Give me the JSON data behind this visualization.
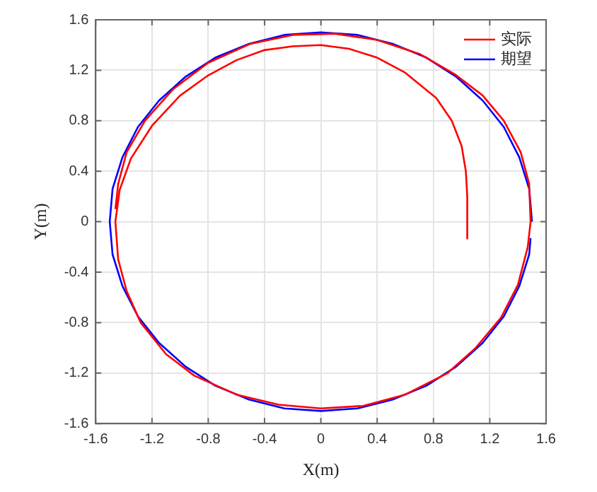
{
  "chart_data": {
    "type": "line",
    "xlabel": "X(m)",
    "ylabel": "Y(m)",
    "xlim": [
      -1.6,
      1.6
    ],
    "ylim": [
      -1.6,
      1.6
    ],
    "xticks": [
      -1.6,
      -1.2,
      -0.8,
      -0.4,
      0,
      0.4,
      0.8,
      1.2,
      1.6
    ],
    "yticks": [
      -1.6,
      -1.2,
      -0.8,
      -0.4,
      0,
      0.4,
      0.8,
      1.2,
      1.6
    ],
    "grid": true,
    "legend": "top right",
    "marker": "none",
    "line_style": "solid",
    "series": [
      {
        "name": "实际",
        "color": "#ff0000",
        "x": [
          1.04,
          1.04,
          1.03,
          1.0,
          0.93,
          0.82,
          0.6,
          0.4,
          0.2,
          0,
          -0.2,
          -0.4,
          -0.6,
          -0.8,
          -1.0,
          -1.2,
          -1.35,
          -1.43,
          -1.46,
          -1.44,
          -1.38,
          -1.28,
          -1.1,
          -0.9,
          -0.6,
          -0.3,
          0,
          0.3,
          0.6,
          0.9,
          1.1,
          1.28,
          1.4,
          1.47,
          1.49,
          1.48,
          1.42,
          1.3,
          1.15,
          0.95,
          0.7,
          0.4,
          0.1,
          -0.2,
          -0.5,
          -0.8,
          -1.05,
          -1.25,
          -1.38,
          -1.44,
          -1.46
        ],
        "values": [
          -0.14,
          0.2,
          0.4,
          0.6,
          0.8,
          0.98,
          1.18,
          1.3,
          1.37,
          1.4,
          1.39,
          1.36,
          1.28,
          1.16,
          1.0,
          0.76,
          0.5,
          0.25,
          0,
          -0.3,
          -0.55,
          -0.8,
          -1.05,
          -1.22,
          -1.37,
          -1.45,
          -1.48,
          -1.46,
          -1.37,
          -1.2,
          -1.0,
          -0.76,
          -0.5,
          -0.2,
          0,
          0.3,
          0.55,
          0.8,
          1.0,
          1.17,
          1.33,
          1.44,
          1.49,
          1.48,
          1.41,
          1.26,
          1.05,
          0.8,
          0.55,
          0.3,
          0.1
        ]
      },
      {
        "name": "期望",
        "color": "#0000ff",
        "x": [
          1.5,
          1.48,
          1.41,
          1.3,
          1.15,
          0.96,
          0.75,
          0.51,
          0.26,
          0,
          -0.26,
          -0.51,
          -0.75,
          -0.96,
          -1.15,
          -1.3,
          -1.41,
          -1.48,
          -1.5,
          -1.48,
          -1.41,
          -1.3,
          -1.15,
          -0.96,
          -0.75,
          -0.51,
          -0.26,
          0,
          0.26,
          0.51,
          0.75,
          0.96,
          1.15,
          1.3,
          1.41,
          1.48,
          1.49
        ],
        "values": [
          0,
          0.26,
          0.51,
          0.75,
          0.96,
          1.15,
          1.3,
          1.41,
          1.48,
          1.5,
          1.48,
          1.41,
          1.3,
          1.15,
          0.96,
          0.75,
          0.51,
          0.26,
          0,
          -0.26,
          -0.51,
          -0.75,
          -0.96,
          -1.15,
          -1.3,
          -1.41,
          -1.48,
          -1.5,
          -1.48,
          -1.41,
          -1.3,
          -1.15,
          -0.96,
          -0.75,
          -0.51,
          -0.26,
          -0.13
        ]
      }
    ]
  }
}
